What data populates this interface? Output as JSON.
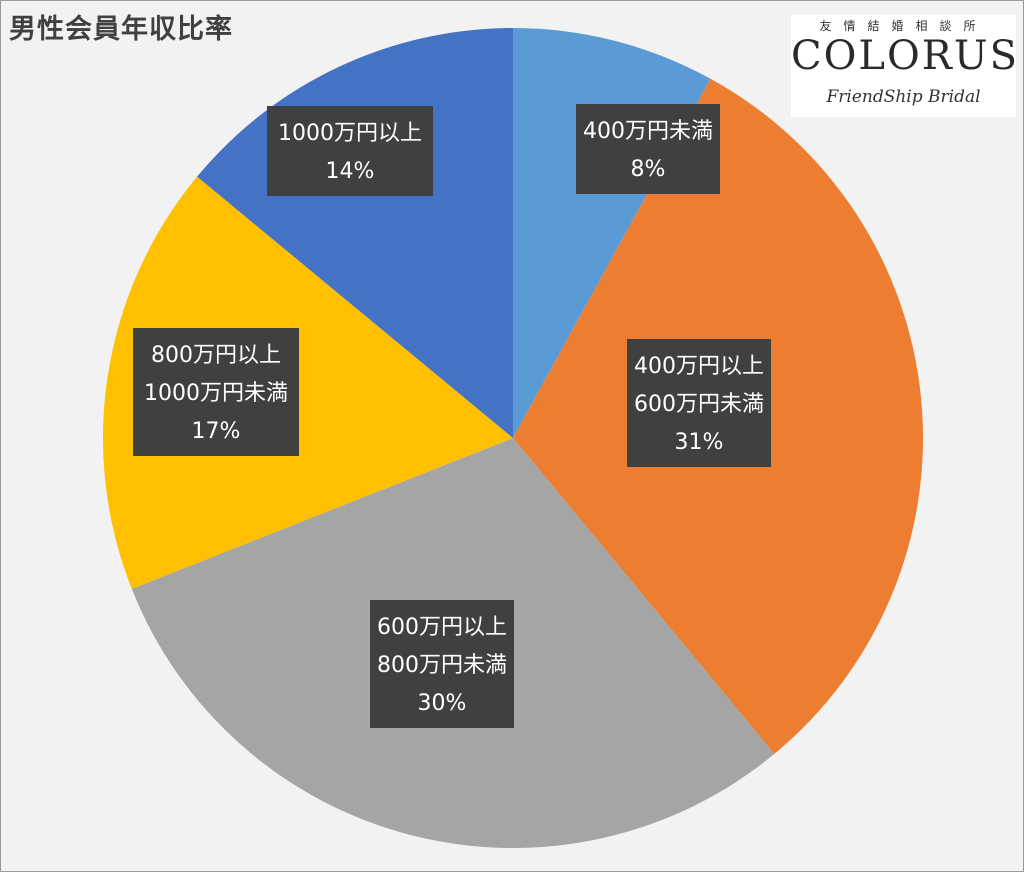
{
  "chart_data": {
    "type": "pie",
    "title": "男性会員年収比率",
    "slices": [
      {
        "label_lines": [
          "400万円未満"
        ],
        "value": 8,
        "pct_text": "8%",
        "color": "#5b9bd5"
      },
      {
        "label_lines": [
          "400万円以上",
          "600万円未満"
        ],
        "value": 31,
        "pct_text": "31%",
        "color": "#ed7d31"
      },
      {
        "label_lines": [
          "600万円以上",
          "800万円未満"
        ],
        "value": 30,
        "pct_text": "30%",
        "color": "#a5a5a5"
      },
      {
        "label_lines": [
          "800万円以上",
          "1000万円未満"
        ],
        "value": 17,
        "pct_text": "17%",
        "color": "#ffc000"
      },
      {
        "label_lines": [
          "1000万円以上"
        ],
        "value": 14,
        "pct_text": "14%",
        "color": "#4472c4"
      }
    ],
    "start_angle": "12 o'clock",
    "direction": "clockwise",
    "label_style": "dark boxes with white text"
  },
  "logo": {
    "tagline": "友情結婚相談所",
    "wordmark": "COLORUS",
    "subtitle": "FriendShip Bridal"
  }
}
